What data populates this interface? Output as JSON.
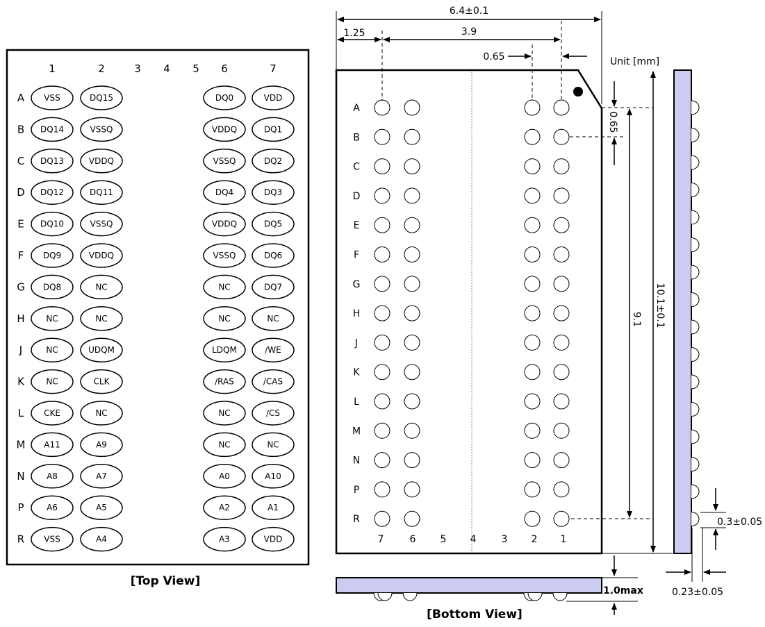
{
  "top_view": {
    "caption": "[Top View]",
    "column_labels": [
      "1",
      "2",
      "3",
      "4",
      "5",
      "6",
      "7"
    ],
    "row_labels": [
      "A",
      "B",
      "C",
      "D",
      "E",
      "F",
      "G",
      "H",
      "J",
      "K",
      "L",
      "M",
      "N",
      "P",
      "R"
    ],
    "pins": [
      [
        "VSS",
        "DQ15",
        "DQ0",
        "VDD"
      ],
      [
        "DQ14",
        "VSSQ",
        "VDDQ",
        "DQ1"
      ],
      [
        "DQ13",
        "VDDQ",
        "VSSQ",
        "DQ2"
      ],
      [
        "DQ12",
        "DQ11",
        "DQ4",
        "DQ3"
      ],
      [
        "DQ10",
        "VSSQ",
        "VDDQ",
        "DQ5"
      ],
      [
        "DQ9",
        "VDDQ",
        "VSSQ",
        "DQ6"
      ],
      [
        "DQ8",
        "NC",
        "NC",
        "DQ7"
      ],
      [
        "NC",
        "NC",
        "NC",
        "NC"
      ],
      [
        "NC",
        "UDQM",
        "LDQM",
        "/WE"
      ],
      [
        "NC",
        "CLK",
        "/RAS",
        "/CAS"
      ],
      [
        "CKE",
        "NC",
        "NC",
        "/CS"
      ],
      [
        "A11",
        "A9",
        "NC",
        "NC"
      ],
      [
        "A8",
        "A7",
        "A0",
        "A10"
      ],
      [
        "A6",
        "A5",
        "A2",
        "A1"
      ],
      [
        "VSS",
        "A4",
        "A3",
        "VDD"
      ]
    ]
  },
  "bottom_view": {
    "caption": "[Bottom View]",
    "column_labels": [
      "7",
      "6",
      "5",
      "4",
      "3",
      "2",
      "1"
    ],
    "row_labels": [
      "A",
      "B",
      "C",
      "D",
      "E",
      "F",
      "G",
      "H",
      "J",
      "K",
      "L",
      "M",
      "N",
      "P",
      "R"
    ]
  },
  "dimensions": {
    "unit": "Unit [mm]",
    "width": "6.4±0.1",
    "edge_offset": "1.25",
    "ball_span": "3.9",
    "pitch_top": "0.65",
    "pitch_side": "0.65",
    "row_span": "9.1",
    "height": "10.1±0.1",
    "ball_height": "0.3±0.05",
    "substrate_thickness": "0.23±0.05",
    "package_height": "1.0max"
  },
  "colors": {
    "substrate": "#ccccf0",
    "line": "#000000"
  }
}
